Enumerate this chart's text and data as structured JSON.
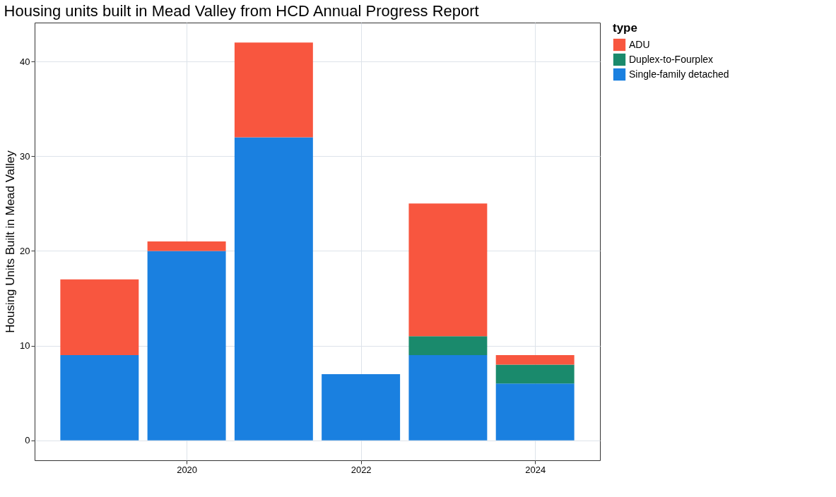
{
  "chart_data": {
    "type": "bar",
    "title": "Housing units built in Mead Valley from HCD Annual Progress Report",
    "ylabel": "Housing Units Built in Mead Valley",
    "legend_title": "type",
    "x": [
      2019,
      2020,
      2021,
      2022,
      2023,
      2024
    ],
    "stacked": true,
    "series": [
      {
        "name": "Single-family detached",
        "color": "#1a80e0",
        "values": [
          9,
          20,
          32,
          7,
          9,
          6
        ]
      },
      {
        "name": "Duplex-to-Fourplex",
        "color": "#1a8a6c",
        "values": [
          null,
          null,
          null,
          null,
          2,
          2
        ]
      },
      {
        "name": "ADU",
        "color": "#f8563f",
        "values": [
          8,
          1,
          10,
          null,
          14,
          1
        ]
      }
    ],
    "xlim": [
      2018.255,
      2024.745
    ],
    "xticks": [
      2020,
      2022,
      2024
    ],
    "ylim": [
      -2.1,
      44.1
    ],
    "yticks": [
      0,
      10,
      20,
      30,
      40
    ],
    "grid": true,
    "legend": "right"
  }
}
